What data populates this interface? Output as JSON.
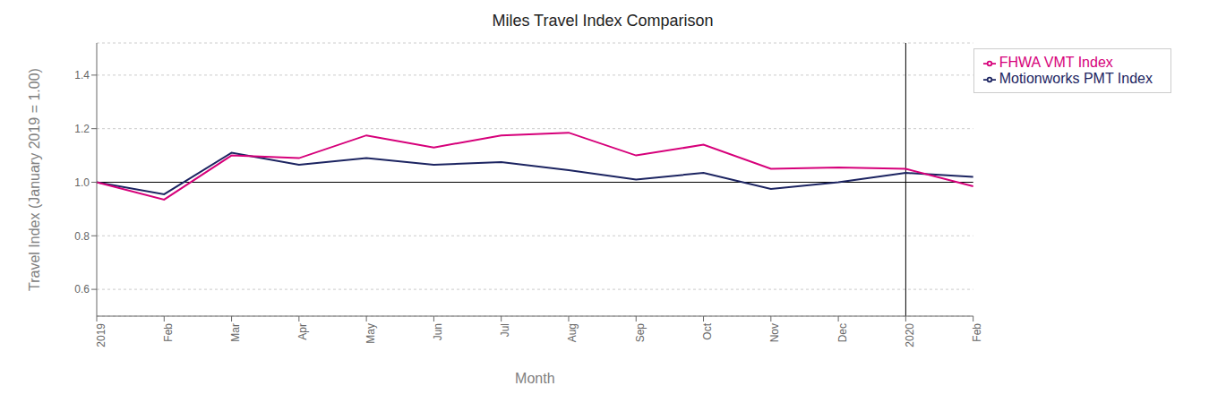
{
  "chart_data": {
    "type": "line",
    "title": "Miles Travel Index Comparison",
    "x_label": "Month",
    "y_label": "Travel Index (January 2019 = 1.00)",
    "categories": [
      "2019",
      "Feb",
      "Mar",
      "Apr",
      "May",
      "Jun",
      "Jul",
      "Aug",
      "Sep",
      "Oct",
      "Nov",
      "Dec",
      "2020",
      "Feb"
    ],
    "series": [
      {
        "name": "Motionworks PMT Index",
        "color": "#1c2461",
        "values": [
          1.0,
          0.955,
          1.11,
          1.065,
          1.09,
          1.065,
          1.075,
          1.045,
          1.01,
          1.035,
          0.975,
          1.0,
          1.035,
          1.02
        ]
      },
      {
        "name": "FHWA VMT Index",
        "color": "#d6007a",
        "values": [
          1.0,
          0.935,
          1.1,
          1.09,
          1.175,
          1.13,
          1.175,
          1.185,
          1.1,
          1.14,
          1.05,
          1.055,
          1.05,
          0.985
        ]
      }
    ],
    "ylim": [
      0.5,
      1.52
    ],
    "yticks": [
      0.6,
      0.8,
      {
        "value": 1.0,
        "label": "1.0"
      },
      1.2,
      1.4
    ],
    "vline_x": 12,
    "hline_y": 1.0,
    "grid": true,
    "legend": "upper right"
  }
}
